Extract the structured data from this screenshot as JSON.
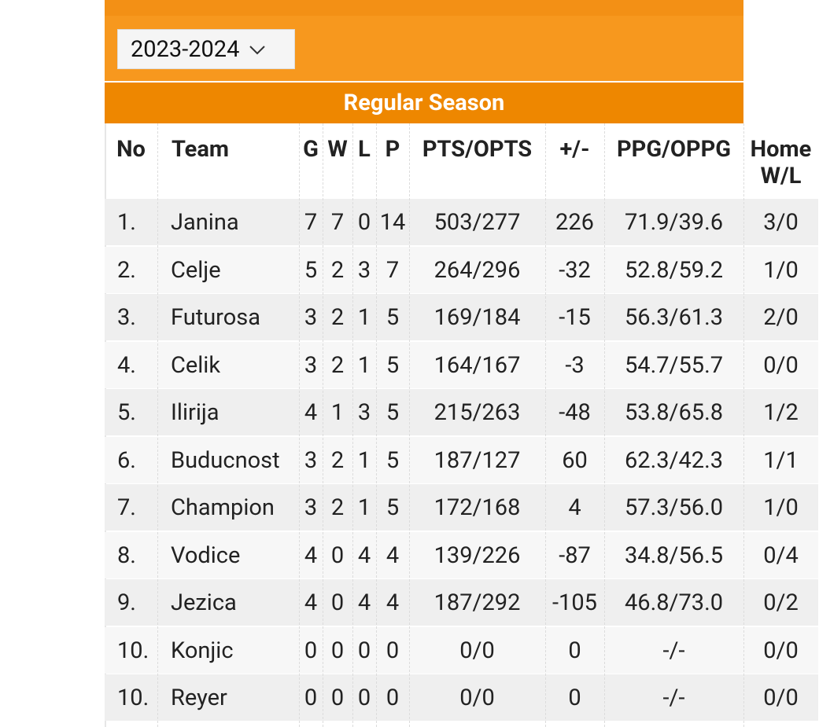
{
  "season_select": {
    "value": "2023-2024"
  },
  "section": {
    "title": "Regular Season"
  },
  "table": {
    "columns": [
      "No",
      "Team",
      "G",
      "W",
      "L",
      "P",
      "PTS/OPTS",
      "+/-",
      "PPG/OPPG",
      "Home W/L"
    ],
    "rows": [
      [
        "1.",
        "Janina",
        "7",
        "7",
        "0",
        "14",
        "503/277",
        "226",
        "71.9/39.6",
        "3/0"
      ],
      [
        "2.",
        "Celje",
        "5",
        "2",
        "3",
        "7",
        "264/296",
        "-32",
        "52.8/59.2",
        "1/0"
      ],
      [
        "3.",
        "Futurosa",
        "3",
        "2",
        "1",
        "5",
        "169/184",
        "-15",
        "56.3/61.3",
        "2/0"
      ],
      [
        "4.",
        "Celik",
        "3",
        "2",
        "1",
        "5",
        "164/167",
        "-3",
        "54.7/55.7",
        "0/0"
      ],
      [
        "5.",
        "Ilirija",
        "4",
        "1",
        "3",
        "5",
        "215/263",
        "-48",
        "53.8/65.8",
        "1/2"
      ],
      [
        "6.",
        "Buducnost",
        "3",
        "2",
        "1",
        "5",
        "187/127",
        "60",
        "62.3/42.3",
        "1/1"
      ],
      [
        "7.",
        "Champion",
        "3",
        "2",
        "1",
        "5",
        "172/168",
        "4",
        "57.3/56.0",
        "1/0"
      ],
      [
        "8.",
        "Vodice",
        "4",
        "0",
        "4",
        "4",
        "139/226",
        "-87",
        "34.8/56.5",
        "0/4"
      ],
      [
        "9.",
        "Jezica",
        "4",
        "0",
        "4",
        "4",
        "187/292",
        "-105",
        "46.8/73.0",
        "0/2"
      ],
      [
        "10.",
        "Konjic",
        "0",
        "0",
        "0",
        "0",
        "0/0",
        "0",
        "-/-",
        "0/0"
      ],
      [
        "10.",
        "Reyer",
        "0",
        "0",
        "0",
        "0",
        "0/0",
        "0",
        "-/-",
        "0/0"
      ]
    ]
  }
}
